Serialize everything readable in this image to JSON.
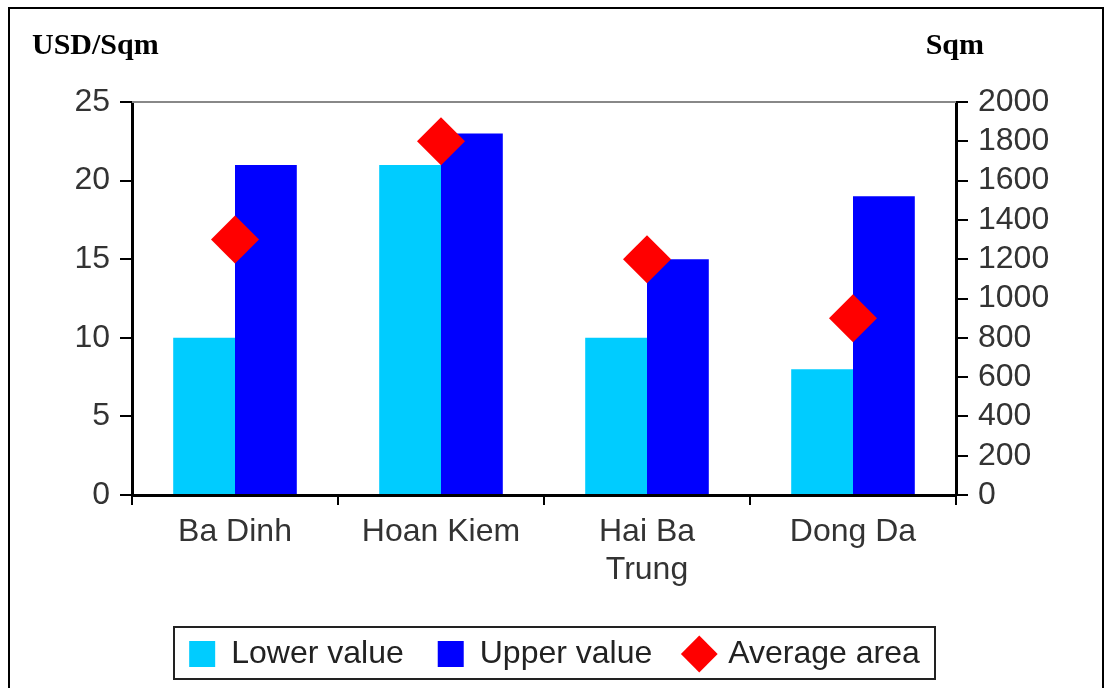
{
  "chart_data": {
    "type": "bar",
    "ylabel": "USD/Sqm",
    "y2label": "Sqm",
    "categories": [
      "Ba Dinh",
      "Hoan Kiem",
      "Hai Ba Trung",
      "Dong Da"
    ],
    "series": [
      {
        "name": "Lower value",
        "color": "#00ccff",
        "values": [
          10,
          21,
          10,
          8
        ]
      },
      {
        "name": "Upper value",
        "color": "#0000ff",
        "values": [
          21,
          23,
          15,
          19
        ]
      },
      {
        "name": "Average area",
        "type": "scatter",
        "axis": "y2",
        "marker": "diamond",
        "color": "#ff0000",
        "values": [
          1300,
          1800,
          1200,
          900
        ]
      }
    ],
    "ylim": [
      0,
      25
    ],
    "yticks": [
      0,
      5,
      10,
      15,
      20,
      25
    ],
    "y2lim": [
      0,
      2000
    ],
    "y2ticks": [
      0,
      200,
      400,
      600,
      800,
      1000,
      1200,
      1400,
      1600,
      1800,
      2000
    ],
    "legend": "bottom",
    "grid": false
  }
}
